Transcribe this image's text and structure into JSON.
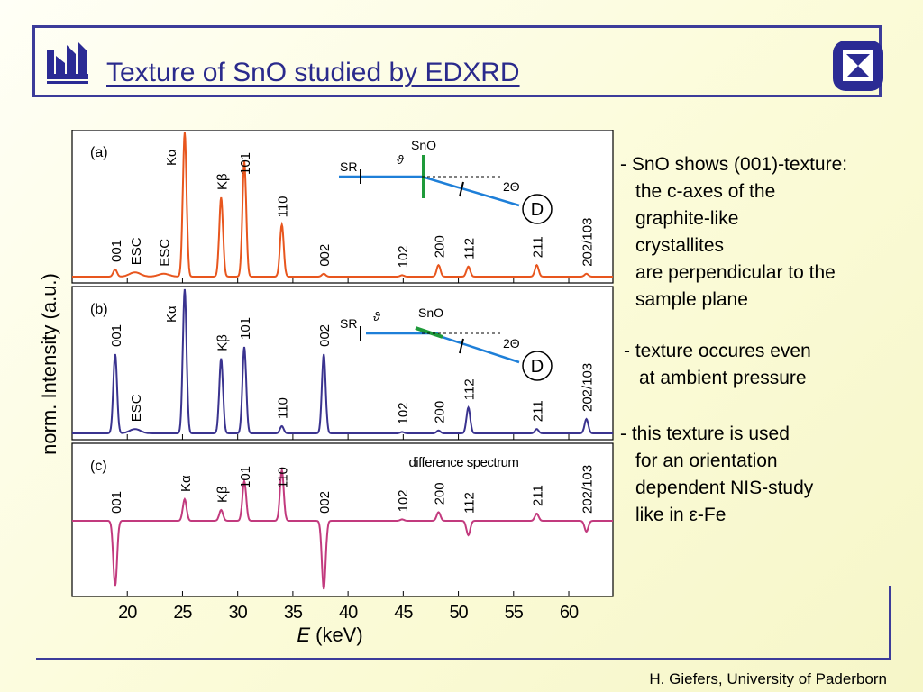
{
  "slide": {
    "title": "Texture of SnO studied by EDXRD",
    "footer": "H. Giefers, University of Paderborn",
    "colors": {
      "frame": "#3c3c9a",
      "title": "#2a2a8c",
      "panel_a": "#e8561e",
      "panel_b": "#3a338f",
      "panel_c": "#c23a7e",
      "beam": "#1e7fd8",
      "sample": "#1e9a3a"
    }
  },
  "bullets": [
    {
      "lines": [
        "- SnO shows (001)-texture:",
        "the c-axes of the",
        "graphite-like",
        "crystallites",
        "are perpendicular to the",
        "sample plane"
      ]
    },
    {
      "lines": [
        "- texture occures even",
        "at ambient pressure"
      ]
    },
    {
      "lines": [
        "- this texture is used",
        "for an orientation",
        "dependent NIS-study",
        "like in ε-Fe"
      ]
    }
  ],
  "chart_data": {
    "type": "line",
    "ylabel": "norm. Intensity (a.u.)",
    "xlabel_symbol": "E",
    "xlabel_unit": "(keV)",
    "xlim": [
      15,
      64
    ],
    "xticks": [
      20,
      25,
      30,
      35,
      40,
      45,
      50,
      55,
      60
    ],
    "panels": [
      {
        "label": "(a)",
        "color": "#e8561e",
        "peaks": [
          {
            "label": "001",
            "x": 18.9,
            "intensity": 0.05
          },
          {
            "label": "ESC",
            "x": 20.7,
            "intensity": 0.03
          },
          {
            "label": "ESC",
            "x": 23.3,
            "intensity": 0.02
          },
          {
            "label": "Kα",
            "x": 25.2,
            "intensity": 1.0
          },
          {
            "label": "Kβ",
            "x": 28.5,
            "intensity": 0.55
          },
          {
            "label": "101",
            "x": 30.6,
            "intensity": 0.8
          },
          {
            "label": "110",
            "x": 34.0,
            "intensity": 0.36
          },
          {
            "label": "002",
            "x": 37.8,
            "intensity": 0.02
          },
          {
            "label": "102",
            "x": 44.9,
            "intensity": 0.01
          },
          {
            "label": "200",
            "x": 48.2,
            "intensity": 0.08
          },
          {
            "label": "112",
            "x": 50.9,
            "intensity": 0.07
          },
          {
            "label": "211",
            "x": 57.1,
            "intensity": 0.08
          },
          {
            "label": "202/103",
            "x": 61.6,
            "intensity": 0.02
          }
        ],
        "inset": {
          "labels": [
            "SR",
            "ϑ",
            "SnO",
            "2Θ",
            "D"
          ]
        }
      },
      {
        "label": "(b)",
        "color": "#3a338f",
        "peaks": [
          {
            "label": "001",
            "x": 18.9,
            "intensity": 0.55
          },
          {
            "label": "ESC",
            "x": 20.7,
            "intensity": 0.03
          },
          {
            "label": "Kα",
            "x": 25.2,
            "intensity": 1.0
          },
          {
            "label": "Kβ",
            "x": 28.5,
            "intensity": 0.52
          },
          {
            "label": "101",
            "x": 30.6,
            "intensity": 0.6
          },
          {
            "label": "110",
            "x": 34.0,
            "intensity": 0.05
          },
          {
            "label": "002",
            "x": 37.8,
            "intensity": 0.55
          },
          {
            "label": "102",
            "x": 44.9,
            "intensity": 0.01
          },
          {
            "label": "200",
            "x": 48.2,
            "intensity": 0.02
          },
          {
            "label": "112",
            "x": 50.9,
            "intensity": 0.18
          },
          {
            "label": "211",
            "x": 57.1,
            "intensity": 0.03
          },
          {
            "label": "202/103",
            "x": 61.6,
            "intensity": 0.1
          }
        ],
        "inset": {
          "labels": [
            "SR",
            "ϑ",
            "SnO",
            "2Θ",
            "D"
          ]
        }
      },
      {
        "label": "(c)",
        "color": "#c23a7e",
        "annotation": "difference spectrum",
        "peaks": [
          {
            "label": "001",
            "x": 18.9,
            "intensity": -0.9
          },
          {
            "label": "Kα",
            "x": 25.2,
            "intensity": 0.3
          },
          {
            "label": "Kβ",
            "x": 28.5,
            "intensity": 0.15
          },
          {
            "label": "101",
            "x": 30.6,
            "intensity": 0.55
          },
          {
            "label": "110",
            "x": 34.0,
            "intensity": 0.7
          },
          {
            "label": "002",
            "x": 37.8,
            "intensity": -0.95
          },
          {
            "label": "102",
            "x": 44.9,
            "intensity": 0.02
          },
          {
            "label": "200",
            "x": 48.2,
            "intensity": 0.12
          },
          {
            "label": "112",
            "x": 50.9,
            "intensity": -0.2
          },
          {
            "label": "211",
            "x": 57.1,
            "intensity": 0.1
          },
          {
            "label": "202/103",
            "x": 61.6,
            "intensity": -0.15
          }
        ]
      }
    ]
  }
}
